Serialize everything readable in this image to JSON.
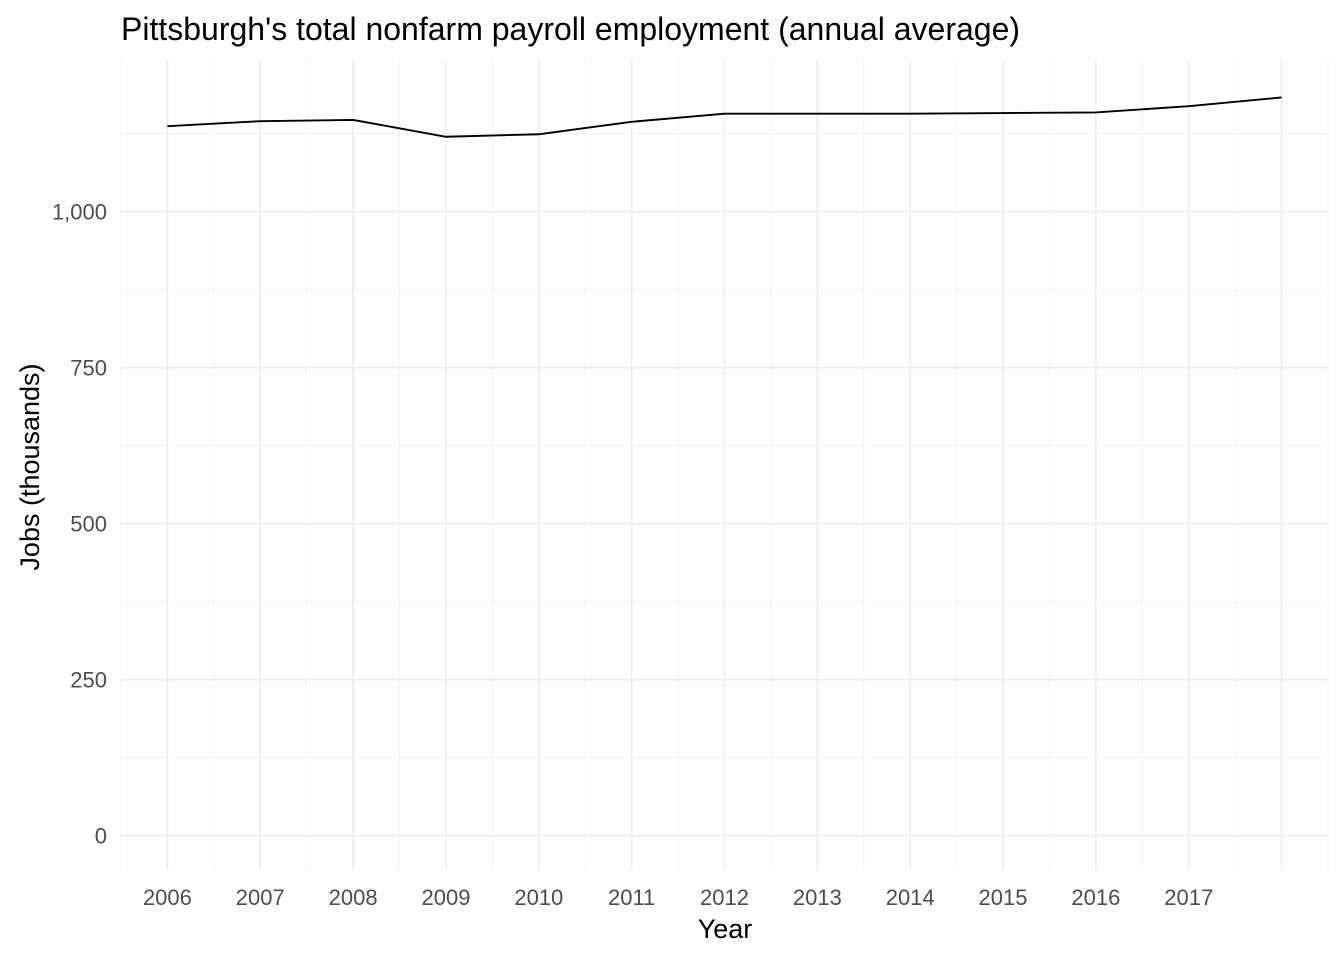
{
  "chart_data": {
    "type": "line",
    "title": "Pittsburgh's total nonfarm payroll employment (annual average)",
    "xlabel": "Year",
    "ylabel": "Jobs (thousands)",
    "x": [
      2006,
      2007,
      2008,
      2009,
      2010,
      2011,
      2012,
      2013,
      2014,
      2015,
      2016,
      2017,
      2018
    ],
    "x_tick_labels": [
      "2006",
      "2007",
      "2008",
      "2009",
      "2010",
      "2011",
      "2012",
      "2013",
      "2014",
      "2015",
      "2016",
      "2017"
    ],
    "x_ticks": [
      2006,
      2007,
      2008,
      2009,
      2010,
      2011,
      2012,
      2013,
      2014,
      2015,
      2016,
      2017
    ],
    "xlim": [
      2005.5,
      2018.5
    ],
    "y_ticks": [
      0,
      250,
      500,
      750,
      1000
    ],
    "y_tick_labels": [
      "0",
      "250",
      "500",
      "750",
      "1,000"
    ],
    "ylim": [
      -55,
      1243
    ],
    "series": [
      {
        "values": [
          1137,
          1145,
          1147,
          1120,
          1124,
          1144,
          1157,
          1157,
          1157,
          1158,
          1159,
          1169,
          1183
        ],
        "color": "#000000"
      }
    ],
    "grid": true,
    "legend": "none"
  }
}
